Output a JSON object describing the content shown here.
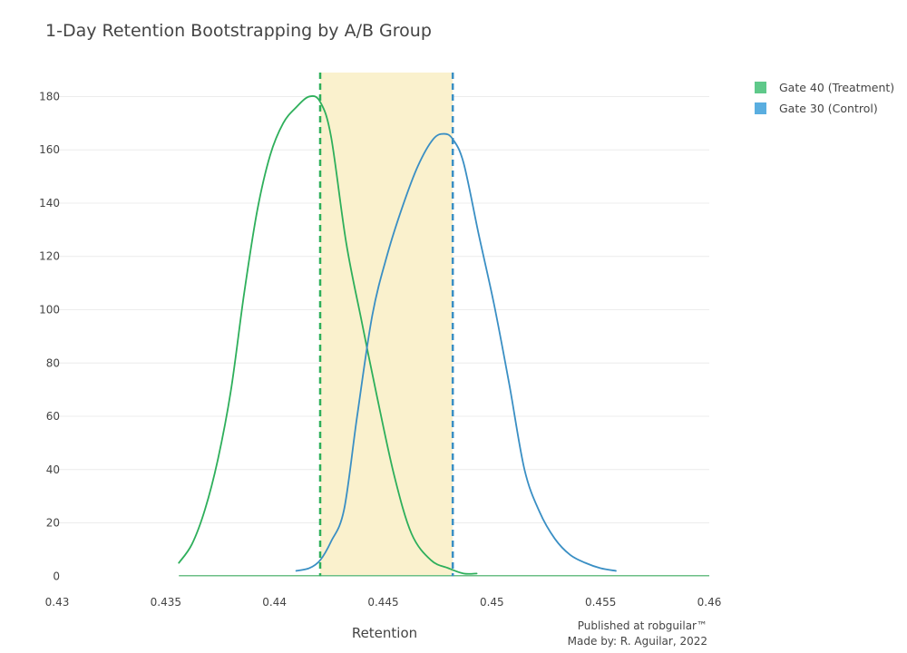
{
  "chart_data": {
    "type": "area",
    "title": "1-Day Retention Bootstrapping by A/B Group",
    "xlabel": "Retention",
    "ylabel": "",
    "xlim": [
      0.43,
      0.46
    ],
    "ylim": [
      -5,
      189
    ],
    "x_ticks": [
      "0.43",
      "0.435",
      "0.44",
      "0.445",
      "0.45",
      "0.455",
      "0.46"
    ],
    "x_tick_values": [
      0.43,
      0.435,
      0.44,
      0.445,
      0.45,
      0.455,
      0.46
    ],
    "y_ticks": [
      "0",
      "20",
      "40",
      "60",
      "80",
      "100",
      "120",
      "140",
      "160",
      "180"
    ],
    "y_tick_values": [
      0,
      20,
      40,
      60,
      80,
      100,
      120,
      140,
      160,
      180
    ],
    "grid": true,
    "legend_position": "top-right",
    "highlight_band": {
      "x_start": 0.4421,
      "x_end": 0.4482,
      "color": "#faf1cd"
    },
    "series": [
      {
        "name": "Gate 40 (Treatment)",
        "color": "#2eaf5b",
        "legend_color": "#5fc98a",
        "mean": 0.4421,
        "x": [
          0.4356,
          0.4362,
          0.4368,
          0.4374,
          0.438,
          0.4386,
          0.4392,
          0.4398,
          0.4404,
          0.441,
          0.4416,
          0.4421,
          0.4426,
          0.4433,
          0.444,
          0.4447,
          0.4455,
          0.4463,
          0.4472,
          0.448,
          0.4487,
          0.4493
        ],
        "y": [
          5,
          12,
          25,
          44,
          70,
          106,
          137,
          158,
          170,
          176,
          180,
          178,
          165,
          125,
          96,
          68,
          38,
          16,
          6,
          3,
          1,
          1
        ]
      },
      {
        "name": "Gate 30 (Control)",
        "color": "#3a8fc4",
        "legend_color": "#5aaee0",
        "mean": 0.4482,
        "x": [
          0.441,
          0.4416,
          0.4421,
          0.4426,
          0.4432,
          0.4438,
          0.4445,
          0.4452,
          0.4459,
          0.4466,
          0.4473,
          0.4478,
          0.4482,
          0.4487,
          0.4494,
          0.4501,
          0.4508,
          0.4515,
          0.4522,
          0.4529,
          0.4536,
          0.4543,
          0.455,
          0.4557
        ],
        "y": [
          2,
          3,
          6,
          13,
          25,
          60,
          98,
          121,
          139,
          154,
          164,
          166,
          164,
          155,
          128,
          102,
          72,
          40,
          24,
          14,
          8,
          5,
          3,
          2
        ]
      }
    ]
  },
  "credits": {
    "line1": "Published at robguilar™",
    "line2": "Made by:  R. Aguilar, 2022"
  }
}
